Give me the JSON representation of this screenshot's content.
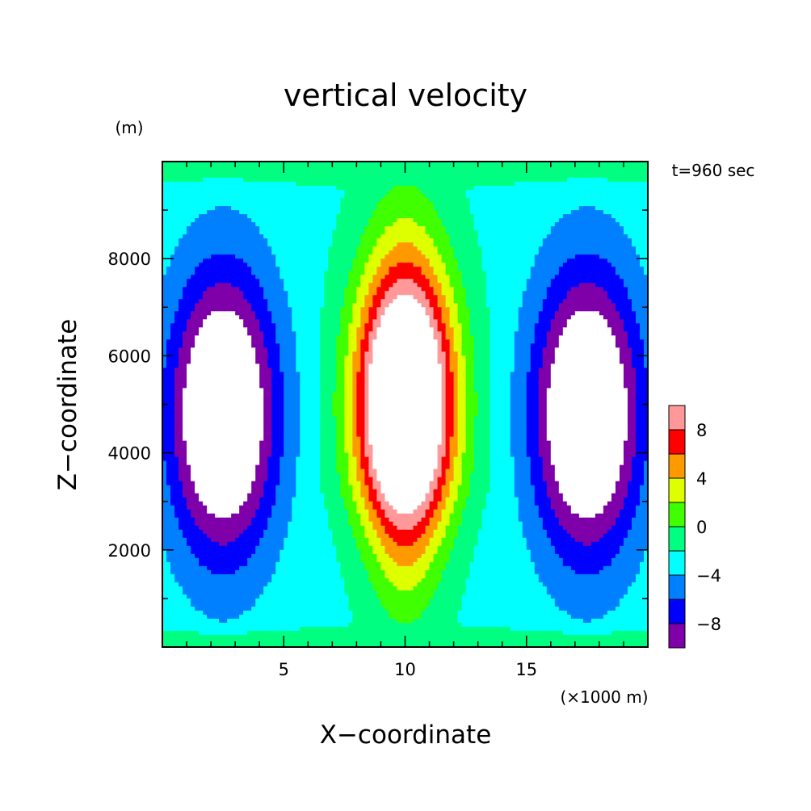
{
  "chart_data": {
    "type": "heatmap",
    "subtype": "filled-contour",
    "title": "vertical velocity",
    "xlabel": "X−coordinate",
    "ylabel": "Z−coordinate",
    "x_unit": "(×1000 m)",
    "y_unit": "(m)",
    "time_label": "t=960 sec",
    "xlim": [
      0,
      20
    ],
    "ylim": [
      0,
      10000
    ],
    "x_ticks": [
      5,
      10,
      15
    ],
    "x_tick_labels": [
      "5",
      "10",
      "15"
    ],
    "y_ticks": [
      2000,
      4000,
      6000,
      8000
    ],
    "y_tick_labels": [
      "2000",
      "4000",
      "6000",
      "8000"
    ],
    "grid": false,
    "legend": "right",
    "colorbar": {
      "levels": [
        -10,
        -8,
        -6,
        -4,
        -2,
        0,
        2,
        4,
        6,
        8,
        10
      ],
      "tick_values": [
        -8,
        -4,
        0,
        4,
        8
      ],
      "tick_labels": [
        "−8",
        "−4",
        "0",
        "4",
        "8"
      ],
      "colors": [
        "#7f00a8",
        "#0000ff",
        "#0080ff",
        "#00ffff",
        "#00ff80",
        "#40ff00",
        "#ddff00",
        "#ff9900",
        "#ff0000",
        "#ff9999"
      ],
      "above_max_color": "#ffffff",
      "below_min_color": "#ffffff"
    },
    "field": {
      "description": "updraft centred at x=10 km, downdrafts near x=2.5 km and x=17.5 km, extrema near z=5000 m",
      "updraft_center": {
        "x": 10,
        "z": 5000
      },
      "downdraft_centers": [
        {
          "x": 2.5,
          "z": 4800
        },
        {
          "x": 17.5,
          "z": 4800
        }
      ],
      "max_value_approx": 12,
      "min_value_approx": -11
    }
  }
}
